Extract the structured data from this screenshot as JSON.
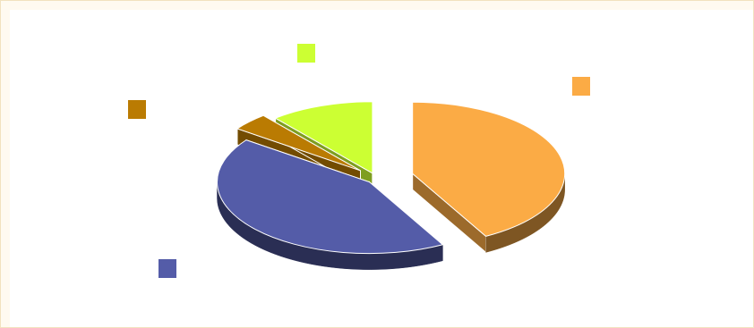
{
  "chart_data": {
    "type": "pie",
    "style": "3d-exploded",
    "title": "",
    "legend": "none",
    "slices": [
      {
        "value": 42,
        "color": "#FBAB45"
      },
      {
        "value": 43,
        "color": "#545CA8"
      },
      {
        "value": 4,
        "color": "#BA7B02"
      },
      {
        "value": 11,
        "color": "#CCFF33"
      }
    ]
  }
}
